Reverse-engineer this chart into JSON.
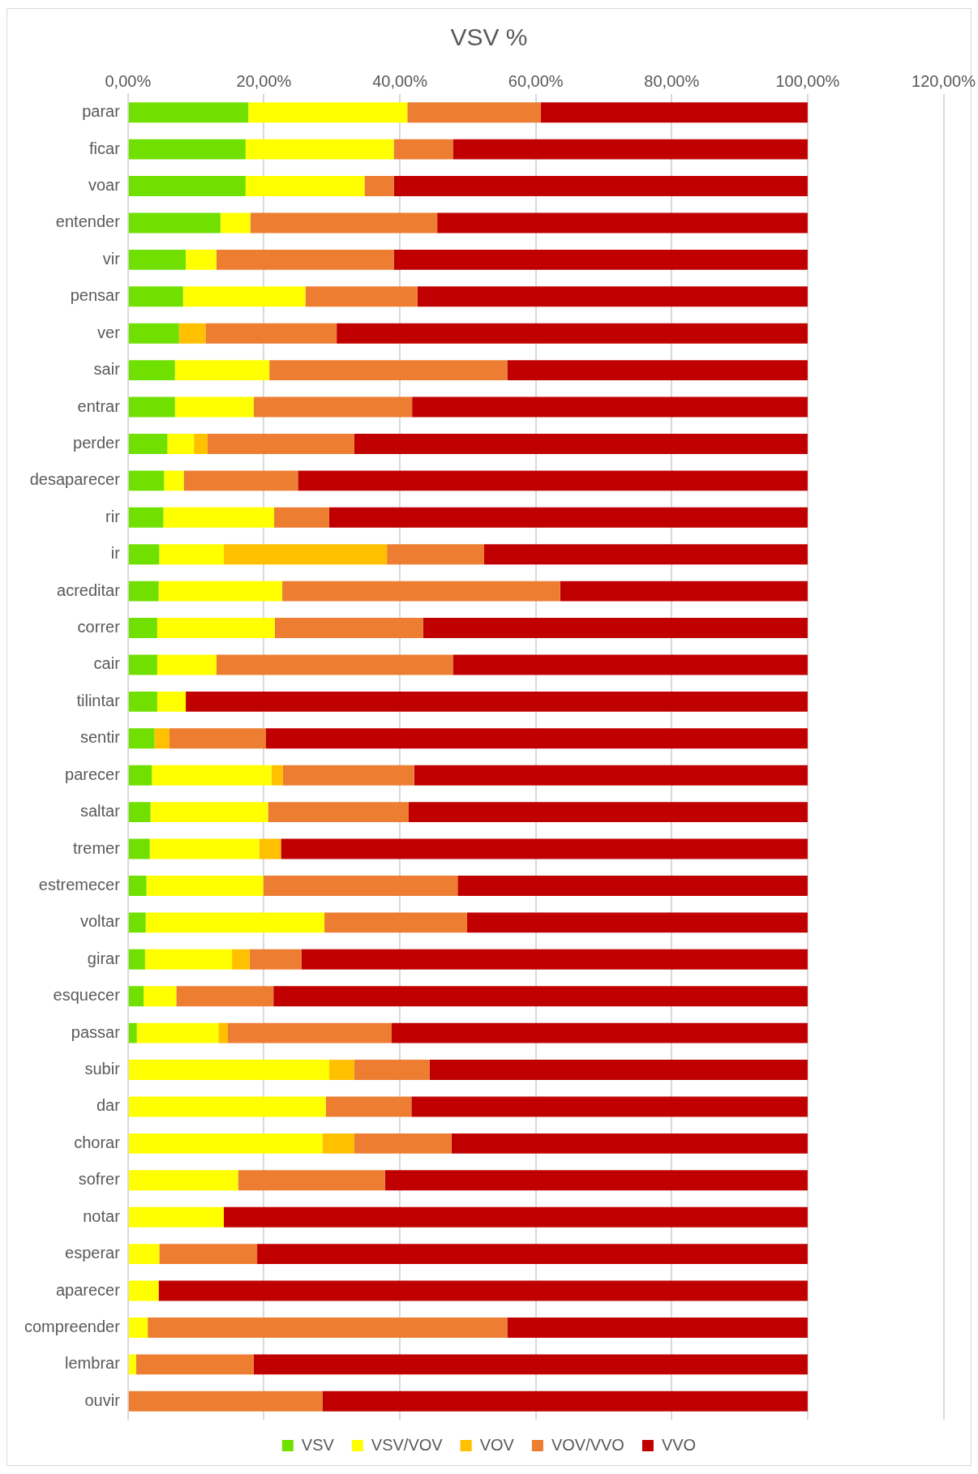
{
  "chart_data": {
    "type": "bar",
    "orientation": "horizontal",
    "stacked": true,
    "title": "VSV %",
    "categories": [
      "parar",
      "ficar",
      "voar",
      "entender",
      "vir",
      "pensar",
      "ver",
      "sair",
      "entrar",
      "perder",
      "desaparecer",
      "rir",
      "ir",
      "acreditar",
      "correr",
      "cair",
      "tilintar",
      "sentir",
      "parecer",
      "saltar",
      "tremer",
      "estremecer",
      "voltar",
      "girar",
      "esquecer",
      "passar",
      "subir",
      "dar",
      "chorar",
      "sofrer",
      "notar",
      "esperar",
      "aparecer",
      "compreender",
      "lembrar",
      "ouvir"
    ],
    "series": [
      {
        "name": "VSV",
        "color": "#70e000",
        "values": [
          17.7,
          17.3,
          17.3,
          13.6,
          8.5,
          8.1,
          7.5,
          6.9,
          6.9,
          5.8,
          5.3,
          5.2,
          4.6,
          4.5,
          4.3,
          4.3,
          4.3,
          3.9,
          3.5,
          3.3,
          3.2,
          2.7,
          2.6,
          2.5,
          2.3,
          1.3,
          0,
          0,
          0,
          0,
          0,
          0,
          0,
          0,
          0,
          0
        ]
      },
      {
        "name": "VSV/VOV",
        "color": "#ffff00",
        "values": [
          23.4,
          21.8,
          17.5,
          4.4,
          4.5,
          18.0,
          0,
          13.9,
          11.6,
          3.9,
          2.9,
          16.3,
          9.5,
          18.2,
          17.3,
          8.7,
          4.2,
          0,
          17.6,
          17.3,
          16.1,
          17.2,
          26.3,
          12.8,
          4.8,
          12.0,
          29.6,
          29.1,
          28.6,
          16.2,
          14.1,
          4.6,
          4.5,
          2.9,
          1.2,
          0
        ]
      },
      {
        "name": "VOV",
        "color": "#ffc000",
        "values": [
          0,
          0,
          0,
          0,
          0,
          0,
          3.9,
          0,
          0,
          2.0,
          0,
          0,
          24.0,
          0,
          0,
          0,
          0,
          2.2,
          1.7,
          0,
          3.2,
          0,
          0,
          2.6,
          0,
          1.4,
          3.7,
          0,
          4.7,
          0,
          0,
          0,
          0,
          0,
          0,
          0
        ]
      },
      {
        "name": "VOV/VVO",
        "color": "#ed7d31",
        "values": [
          19.6,
          8.7,
          4.3,
          27.5,
          26.1,
          16.5,
          19.3,
          35.0,
          23.3,
          21.6,
          16.8,
          8.1,
          14.3,
          40.9,
          21.8,
          34.8,
          0,
          14.2,
          19.3,
          20.7,
          0,
          28.6,
          21.0,
          7.6,
          14.3,
          24.1,
          11.1,
          12.6,
          14.3,
          21.6,
          0,
          14.4,
          0,
          52.9,
          17.3,
          28.6
        ]
      },
      {
        "name": "VVO",
        "color": "#c00000",
        "values": [
          39.3,
          52.2,
          60.9,
          54.5,
          60.9,
          57.4,
          69.3,
          44.2,
          58.2,
          66.7,
          75.0,
          70.4,
          47.6,
          36.4,
          56.6,
          52.2,
          91.5,
          79.7,
          57.9,
          58.7,
          77.5,
          51.5,
          50.1,
          74.5,
          78.6,
          61.2,
          55.6,
          58.3,
          52.4,
          62.2,
          85.9,
          81.0,
          95.5,
          44.2,
          81.5,
          71.4
        ]
      }
    ],
    "xlim": [
      0,
      120
    ],
    "xticks": [
      {
        "value": 0,
        "label": "0,00%"
      },
      {
        "value": 20,
        "label": "20,00%"
      },
      {
        "value": 40,
        "label": "40,00%"
      },
      {
        "value": 60,
        "label": "60,00%"
      },
      {
        "value": 80,
        "label": "80,00%"
      },
      {
        "value": 100,
        "label": "100,00%"
      },
      {
        "value": 120,
        "label": "120,00%"
      }
    ],
    "grid": "x",
    "legend": "bottom"
  }
}
